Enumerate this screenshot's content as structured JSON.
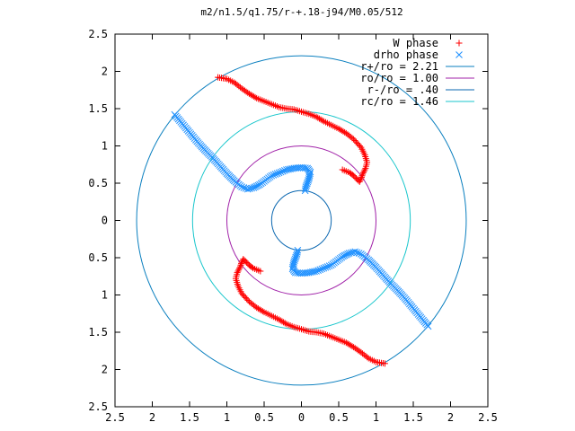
{
  "chart_data": {
    "type": "scatter",
    "title": "m2/n1.5/q1.75/r-+.18-j94/M0.05/512",
    "xlim": [
      -2.5,
      2.5
    ],
    "ylim": [
      -2.5,
      2.5
    ],
    "x_tick_labels": [
      "2.5",
      "2",
      "1.5",
      "1",
      "0.5",
      "0",
      "0.5",
      "1",
      "1.5",
      "2",
      "2.5"
    ],
    "y_tick_labels": [
      "2.5",
      "2",
      "1.5",
      "1",
      "0.5",
      "0",
      "0.5",
      "1",
      "1.5",
      "2",
      "2.5"
    ],
    "tick_values": [
      -2.5,
      -2,
      -1.5,
      -1,
      -0.5,
      0,
      0.5,
      1,
      1.5,
      2,
      2.5
    ],
    "grid": false,
    "legend_position": "top-right",
    "circles": [
      {
        "name": "r+/ro = 2.21",
        "radius": 2.21,
        "color": "#0a7fbf"
      },
      {
        "name": "ro/ro = 1.00",
        "radius": 1.0,
        "color": "#a020a8"
      },
      {
        "name": "r-/ro = .40",
        "radius": 0.4,
        "color": "#0a67b0"
      },
      {
        "name": "rc/ro = 1.46",
        "radius": 1.46,
        "color": "#19c6cc"
      }
    ],
    "series": [
      {
        "name": "W phase",
        "marker": "+",
        "color": "#ff0000",
        "points": [
          [
            -1.12,
            1.92
          ],
          [
            -1.0,
            1.9
          ],
          [
            -0.9,
            1.85
          ],
          [
            -0.8,
            1.77
          ],
          [
            -0.7,
            1.7
          ],
          [
            -0.6,
            1.64
          ],
          [
            -0.5,
            1.6
          ],
          [
            -0.4,
            1.56
          ],
          [
            -0.3,
            1.52
          ],
          [
            -0.2,
            1.5
          ],
          [
            -0.1,
            1.49
          ],
          [
            0.0,
            1.46
          ],
          [
            0.1,
            1.43
          ],
          [
            0.2,
            1.39
          ],
          [
            0.3,
            1.33
          ],
          [
            0.4,
            1.28
          ],
          [
            0.5,
            1.23
          ],
          [
            0.6,
            1.17
          ],
          [
            0.7,
            1.09
          ],
          [
            0.8,
            0.98
          ],
          [
            0.85,
            0.88
          ],
          [
            0.88,
            0.78
          ],
          [
            0.86,
            0.7
          ],
          [
            0.82,
            0.62
          ],
          [
            0.8,
            0.56
          ],
          [
            0.78,
            0.52
          ],
          [
            0.75,
            0.55
          ],
          [
            0.7,
            0.6
          ],
          [
            0.65,
            0.64
          ],
          [
            0.55,
            0.68
          ],
          [
            1.12,
            -1.92
          ],
          [
            1.0,
            -1.9
          ],
          [
            0.9,
            -1.85
          ],
          [
            0.8,
            -1.77
          ],
          [
            0.7,
            -1.7
          ],
          [
            0.6,
            -1.64
          ],
          [
            0.5,
            -1.6
          ],
          [
            0.4,
            -1.56
          ],
          [
            0.3,
            -1.52
          ],
          [
            0.2,
            -1.5
          ],
          [
            0.1,
            -1.49
          ],
          [
            0.0,
            -1.46
          ],
          [
            -0.1,
            -1.43
          ],
          [
            -0.2,
            -1.39
          ],
          [
            -0.3,
            -1.33
          ],
          [
            -0.4,
            -1.28
          ],
          [
            -0.5,
            -1.23
          ],
          [
            -0.6,
            -1.17
          ],
          [
            -0.7,
            -1.09
          ],
          [
            -0.8,
            -0.98
          ],
          [
            -0.85,
            -0.88
          ],
          [
            -0.88,
            -0.78
          ],
          [
            -0.86,
            -0.7
          ],
          [
            -0.82,
            -0.62
          ],
          [
            -0.8,
            -0.56
          ],
          [
            -0.78,
            -0.52
          ],
          [
            -0.75,
            -0.55
          ],
          [
            -0.7,
            -0.6
          ],
          [
            -0.65,
            -0.64
          ],
          [
            -0.55,
            -0.68
          ]
        ]
      },
      {
        "name": "drho phase",
        "marker": "x",
        "color": "#1e90ff",
        "points": [
          [
            -1.7,
            1.42
          ],
          [
            -1.6,
            1.3
          ],
          [
            -1.5,
            1.18
          ],
          [
            -1.4,
            1.06
          ],
          [
            -1.3,
            0.95
          ],
          [
            -1.2,
            0.85
          ],
          [
            -1.1,
            0.74
          ],
          [
            -1.0,
            0.63
          ],
          [
            -0.9,
            0.53
          ],
          [
            -0.8,
            0.45
          ],
          [
            -0.72,
            0.42
          ],
          [
            -0.64,
            0.44
          ],
          [
            -0.56,
            0.48
          ],
          [
            -0.48,
            0.54
          ],
          [
            -0.4,
            0.6
          ],
          [
            -0.3,
            0.64
          ],
          [
            -0.2,
            0.68
          ],
          [
            -0.1,
            0.7
          ],
          [
            0.0,
            0.71
          ],
          [
            0.08,
            0.7
          ],
          [
            0.12,
            0.65
          ],
          [
            0.1,
            0.56
          ],
          [
            0.06,
            0.45
          ],
          [
            0.05,
            0.4
          ],
          [
            1.7,
            -1.42
          ],
          [
            1.6,
            -1.3
          ],
          [
            1.5,
            -1.18
          ],
          [
            1.4,
            -1.06
          ],
          [
            1.3,
            -0.95
          ],
          [
            1.2,
            -0.85
          ],
          [
            1.1,
            -0.74
          ],
          [
            1.0,
            -0.63
          ],
          [
            0.9,
            -0.53
          ],
          [
            0.8,
            -0.45
          ],
          [
            0.72,
            -0.42
          ],
          [
            0.64,
            -0.44
          ],
          [
            0.56,
            -0.48
          ],
          [
            0.48,
            -0.54
          ],
          [
            0.4,
            -0.6
          ],
          [
            0.3,
            -0.64
          ],
          [
            0.2,
            -0.68
          ],
          [
            0.1,
            -0.7
          ],
          [
            0.0,
            -0.71
          ],
          [
            -0.08,
            -0.7
          ],
          [
            -0.12,
            -0.65
          ],
          [
            -0.1,
            -0.56
          ],
          [
            -0.06,
            -0.45
          ],
          [
            -0.05,
            -0.4
          ]
        ]
      }
    ]
  }
}
